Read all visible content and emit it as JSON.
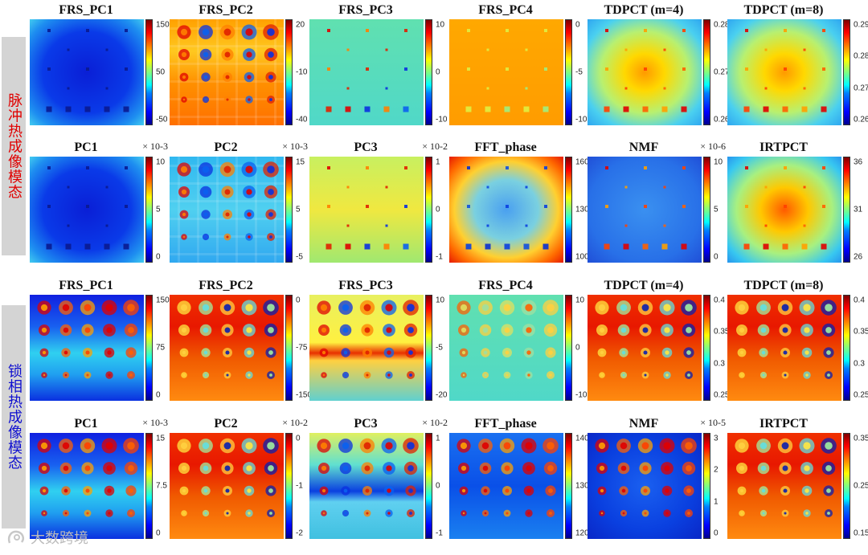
{
  "section_labels": {
    "pulse": "脉冲热成像模态",
    "lockin": "锁相热成像模态"
  },
  "watermark": "大数跨境",
  "colors": {
    "sidebar": "#d4d4d4",
    "pulse_label": "#e00000",
    "lockin_label": "#1010d0"
  },
  "rows": [
    {
      "panels": [
        {
          "title": "FRS_PC1",
          "scale": "",
          "ticks": [
            "150",
            "50",
            "-50"
          ],
          "bg": "b",
          "pat": "square",
          "marks": "dark"
        },
        {
          "title": "FRS_PC2",
          "scale": "",
          "ticks": [
            "20",
            "-10",
            "-40"
          ],
          "bg": "y",
          "pat": "grid",
          "marks": "mixed"
        },
        {
          "title": "FRS_PC3",
          "scale": "",
          "ticks": [
            "10",
            "0",
            "-10"
          ],
          "bg": "c",
          "pat": "square",
          "marks": "mixed"
        },
        {
          "title": "FRS_PC4",
          "scale": "",
          "ticks": [
            "0",
            "-5",
            "-10"
          ],
          "bg": "o",
          "pat": "square",
          "marks": "light"
        },
        {
          "title": "TDPCT (m=4)",
          "scale": "",
          "ticks": [
            "0.28",
            "0.27",
            "0.26"
          ],
          "bg": "v",
          "pat": "square",
          "marks": "hot"
        },
        {
          "title": "TDPCT (m=8)",
          "scale": "",
          "ticks": [
            "0.29",
            "0.28",
            "0.27",
            "0.26"
          ],
          "bg": "v",
          "pat": "square",
          "marks": "hot"
        }
      ]
    },
    {
      "panels": [
        {
          "title": "PC1",
          "scale": "× 10-3",
          "ticks": [
            "10",
            "5",
            "0"
          ],
          "bg": "b",
          "pat": "square",
          "marks": "dark"
        },
        {
          "title": "PC2",
          "scale": "× 10-3",
          "ticks": [
            "15",
            "5",
            "-5"
          ],
          "bg": "lc",
          "pat": "grid",
          "marks": "mixed"
        },
        {
          "title": "PC3",
          "scale": "× 10-2",
          "ticks": [
            "1",
            "0",
            "-1"
          ],
          "bg": "yg",
          "pat": "square",
          "marks": "mixed"
        },
        {
          "title": "FFT_phase",
          "scale": "",
          "ticks": [
            "160",
            "130",
            "100"
          ],
          "bg": "rim",
          "pat": "square",
          "marks": "blue"
        },
        {
          "title": "NMF",
          "scale": "× 10-6",
          "ticks": [
            "10",
            "5",
            "0"
          ],
          "bg": "noise",
          "pat": "square",
          "marks": "hot"
        },
        {
          "title": "IRTPCT",
          "scale": "",
          "ticks": [
            "36",
            "31",
            "26"
          ],
          "bg": "v2",
          "pat": "square",
          "marks": "hot"
        }
      ]
    },
    {
      "panels": [
        {
          "title": "FRS_PC1",
          "scale": "",
          "ticks": [
            "150",
            "75",
            "0"
          ],
          "bg": "bstrip",
          "pat": "circle",
          "marks": "hot"
        },
        {
          "title": "FRS_PC2",
          "scale": "",
          "ticks": [
            "0",
            "-75",
            "-150"
          ],
          "bg": "r",
          "pat": "circle",
          "marks": "cool"
        },
        {
          "title": "FRS_PC3",
          "scale": "",
          "ticks": [
            "10",
            "-5",
            "-20"
          ],
          "bg": "ystripe",
          "pat": "circle",
          "marks": "mixed"
        },
        {
          "title": "FRS_PC4",
          "scale": "",
          "ticks": [
            "10",
            "0",
            "-10"
          ],
          "bg": "c",
          "pat": "circle",
          "marks": "faint"
        },
        {
          "title": "TDPCT (m=4)",
          "scale": "",
          "ticks": [
            "0.4",
            "0.35",
            "0.3",
            "0.25"
          ],
          "bg": "r",
          "pat": "circle",
          "marks": "cool"
        },
        {
          "title": "TDPCT (m=8)",
          "scale": "",
          "ticks": [
            "0.4",
            "0.35",
            "0.3",
            "0.25"
          ],
          "bg": "r",
          "pat": "circle",
          "marks": "cool"
        }
      ]
    },
    {
      "panels": [
        {
          "title": "PC1",
          "scale": "× 10-3",
          "ticks": [
            "15",
            "7.5",
            "0"
          ],
          "bg": "bstrip",
          "pat": "circle",
          "marks": "hot"
        },
        {
          "title": "PC2",
          "scale": "× 10-2",
          "ticks": [
            "0",
            "-1",
            "-2"
          ],
          "bg": "r",
          "pat": "circle",
          "marks": "cool"
        },
        {
          "title": "PC3",
          "scale": "× 10-2",
          "ticks": [
            "1",
            "0",
            "-1"
          ],
          "bg": "cstripe",
          "pat": "circle",
          "marks": "mixed"
        },
        {
          "title": "FFT_phase",
          "scale": "",
          "ticks": [
            "140",
            "130",
            "120"
          ],
          "bg": "blu",
          "pat": "circle",
          "marks": "hot"
        },
        {
          "title": "NMF",
          "scale": "× 10-5",
          "ticks": [
            "3",
            "2",
            "1",
            "0"
          ],
          "bg": "b2",
          "pat": "circle",
          "marks": "hot"
        },
        {
          "title": "IRTPCT",
          "scale": "",
          "ticks": [
            "0.35",
            "0.25",
            "0.15"
          ],
          "bg": "r",
          "pat": "circle",
          "marks": "cool"
        }
      ]
    }
  ]
}
